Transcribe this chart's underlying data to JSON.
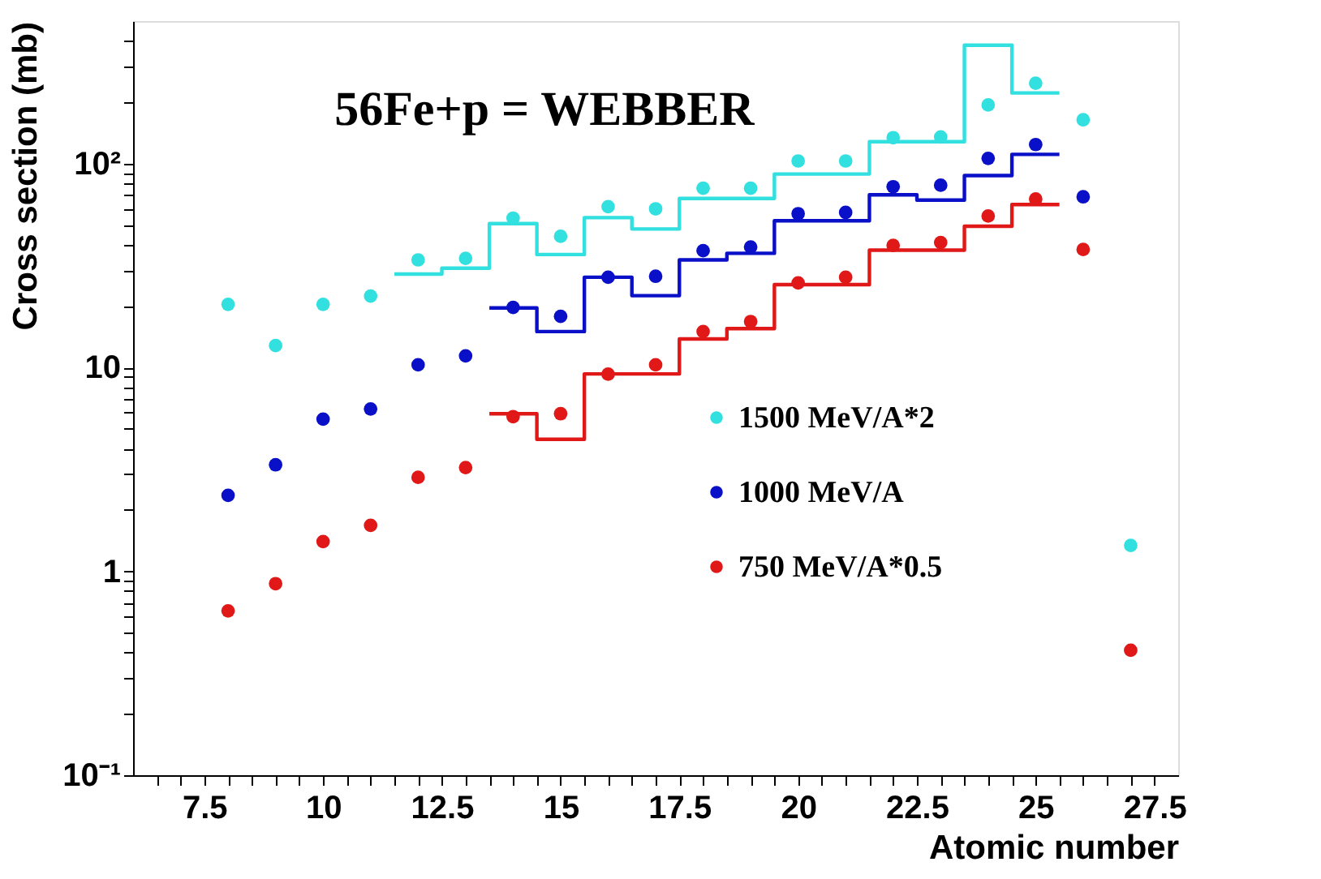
{
  "chart_data": {
    "type": "scatter",
    "title": "56Fe+p = WEBBER",
    "xlabel": "Atomic number",
    "ylabel": "Cross section (mb)",
    "x": [
      8,
      9,
      10,
      11,
      12,
      13,
      14,
      15,
      16,
      17,
      18,
      19,
      20,
      21,
      22,
      23,
      24,
      25,
      26,
      27
    ],
    "series": [
      {
        "name": "1500 MeV/A*2",
        "color": "#33e0e0",
        "values": [
          20.4,
          12.8,
          20.4,
          22.4,
          33.7,
          34.3,
          54,
          44,
          61.5,
          60,
          75.7,
          75.7,
          103,
          103,
          134,
          135,
          194,
          248,
          164,
          1.34
        ]
      },
      {
        "name": "1000 MeV/A",
        "color": "#0a10c8",
        "values": [
          2.36,
          3.33,
          5.58,
          6.26,
          10.3,
          11.4,
          19.7,
          17.8,
          27.7,
          28,
          37.4,
          39,
          56.8,
          57.6,
          77,
          78.3,
          106,
          124,
          68.7,
          null
        ]
      },
      {
        "name": "750 MeV/A*0.5",
        "color": "#e01818",
        "values": [
          0.64,
          0.87,
          1.4,
          1.68,
          2.89,
          3.23,
          5.74,
          5.93,
          9.27,
          10.3,
          15,
          16.8,
          26,
          27.7,
          39.7,
          41,
          55.3,
          67,
          37.9,
          0.41
        ]
      },
      {
        "type": "step",
        "marker": "none",
        "line_style": "solid",
        "color": "#33e0e0",
        "x": [
          11.5,
          12.5,
          13.5,
          14.5,
          15.5,
          16.5,
          17.5,
          19.5,
          21.5,
          23.5,
          24.5,
          25.5
        ],
        "values": [
          28.7,
          30.7,
          50.8,
          35.8,
          54.3,
          47.8,
          67.4,
          88.9,
          128,
          381,
          222,
          222
        ]
      },
      {
        "type": "step",
        "marker": "none",
        "line_style": "solid",
        "color": "#0a10c8",
        "x": [
          13.5,
          14.5,
          15.5,
          16.5,
          17.5,
          18.5,
          19.5,
          21.5,
          22.5,
          23.5,
          24.5,
          25.5
        ],
        "values": [
          19.6,
          15.0,
          27.7,
          22.5,
          33.7,
          36.3,
          52.4,
          70.3,
          66.2,
          87.3,
          111,
          111
        ]
      },
      {
        "type": "step",
        "marker": "none",
        "line_style": "solid",
        "color": "#e01818",
        "x": [
          13.5,
          14.5,
          15.5,
          17.5,
          18.5,
          19.5,
          21.5,
          23.5,
          24.5,
          25.5
        ],
        "values": [
          5.93,
          4.44,
          9.3,
          13.8,
          15.5,
          25.5,
          37.6,
          49.3,
          63,
          63
        ]
      }
    ],
    "xlim": [
      6,
      28
    ],
    "xticks": [
      {
        "value": 6.5,
        "label": null
      },
      {
        "value": 7,
        "label": null
      },
      7.5,
      {
        "value": 8,
        "label": null
      },
      {
        "value": 8.5,
        "label": null
      },
      {
        "value": 9,
        "label": null
      },
      {
        "value": 9.5,
        "label": null
      },
      10,
      {
        "value": 10.5,
        "label": null
      },
      {
        "value": 11,
        "label": null
      },
      {
        "value": 11.5,
        "label": null
      },
      {
        "value": 12,
        "label": null
      },
      12.5,
      {
        "value": 13,
        "label": null
      },
      {
        "value": 13.5,
        "label": null
      },
      {
        "value": 14,
        "label": null
      },
      {
        "value": 14.5,
        "label": null
      },
      15,
      {
        "value": 15.5,
        "label": null
      },
      {
        "value": 16,
        "label": null
      },
      {
        "value": 16.5,
        "label": null
      },
      {
        "value": 17,
        "label": null
      },
      17.5,
      {
        "value": 18,
        "label": null
      },
      {
        "value": 18.5,
        "label": null
      },
      {
        "value": 19,
        "label": null
      },
      {
        "value": 19.5,
        "label": null
      },
      20,
      {
        "value": 20.5,
        "label": null
      },
      {
        "value": 21,
        "label": null
      },
      {
        "value": 21.5,
        "label": null
      },
      {
        "value": 22,
        "label": null
      },
      22.5,
      {
        "value": 23,
        "label": null
      },
      {
        "value": 23.5,
        "label": null
      },
      {
        "value": 24,
        "label": null
      },
      {
        "value": 24.5,
        "label": null
      },
      25,
      {
        "value": 25.5,
        "label": null
      },
      {
        "value": 26,
        "label": null
      },
      {
        "value": 26.5,
        "label": null
      },
      {
        "value": 27,
        "label": null
      },
      27.5
    ],
    "ylim": [
      0.1,
      500
    ],
    "log": "y",
    "yticks": [
      {
        "value": 0.1,
        "label": "10⁻¹"
      },
      {
        "value": 0.2,
        "label": null
      },
      {
        "value": 0.3,
        "label": null
      },
      {
        "value": 0.4,
        "label": null
      },
      {
        "value": 0.5,
        "label": null
      },
      {
        "value": 0.6,
        "label": null
      },
      {
        "value": 0.7,
        "label": null
      },
      {
        "value": 0.8,
        "label": null
      },
      {
        "value": 0.9,
        "label": null
      },
      1,
      {
        "value": 2,
        "label": null
      },
      {
        "value": 3,
        "label": null
      },
      {
        "value": 4,
        "label": null
      },
      {
        "value": 5,
        "label": null
      },
      {
        "value": 6,
        "label": null
      },
      {
        "value": 7,
        "label": null
      },
      {
        "value": 8,
        "label": null
      },
      {
        "value": 9,
        "label": null
      },
      10,
      {
        "value": 20,
        "label": null
      },
      {
        "value": 30,
        "label": null
      },
      {
        "value": 40,
        "label": null
      },
      {
        "value": 50,
        "label": null
      },
      {
        "value": 60,
        "label": null
      },
      {
        "value": 70,
        "label": null
      },
      {
        "value": 80,
        "label": null
      },
      {
        "value": 90,
        "label": null
      },
      {
        "value": 100,
        "label": "10²"
      },
      {
        "value": 200,
        "label": null
      },
      {
        "value": 300,
        "label": null
      },
      {
        "value": 400,
        "label": null
      }
    ],
    "grid": false,
    "legend": "right",
    "marker": "circle"
  }
}
